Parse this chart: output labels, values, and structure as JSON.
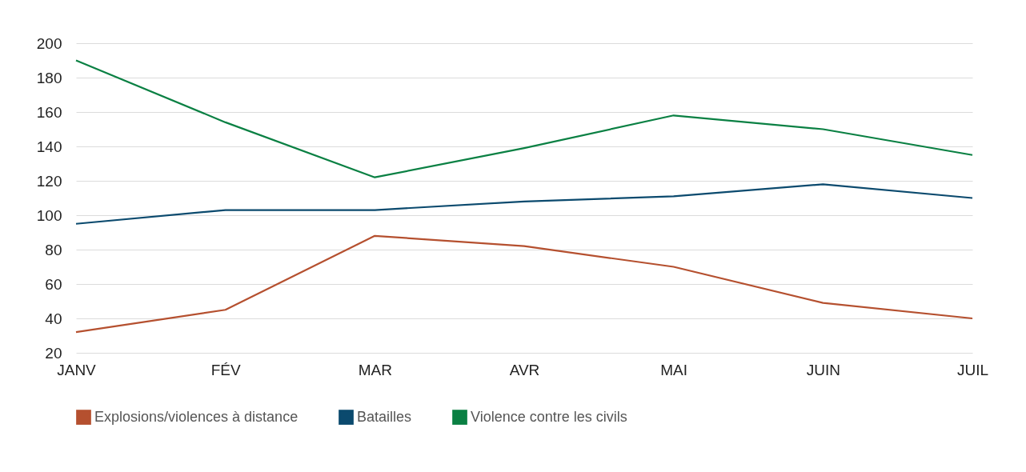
{
  "chart_data": {
    "type": "line",
    "categories": [
      "JANV",
      "FÉV",
      "MAR",
      "AVR",
      "MAI",
      "JUIN",
      "JUIL"
    ],
    "series": [
      {
        "name": "Explosions/violences à distance",
        "color": "#b5502f",
        "values": [
          32,
          45,
          88,
          82,
          70,
          49,
          40
        ]
      },
      {
        "name": "Batailles",
        "color": "#0b4a6e",
        "values": [
          95,
          103,
          103,
          108,
          111,
          118,
          110
        ]
      },
      {
        "name": "Violence contre les civils",
        "color": "#0a8043",
        "values": [
          190,
          154,
          122,
          139,
          158,
          150,
          135
        ]
      }
    ],
    "ylim": [
      20,
      200
    ],
    "yticks": [
      20,
      40,
      60,
      80,
      100,
      120,
      140,
      160,
      180,
      200
    ],
    "grid": "y",
    "legend": "bottom",
    "marker": "none",
    "line_style": "solid"
  }
}
